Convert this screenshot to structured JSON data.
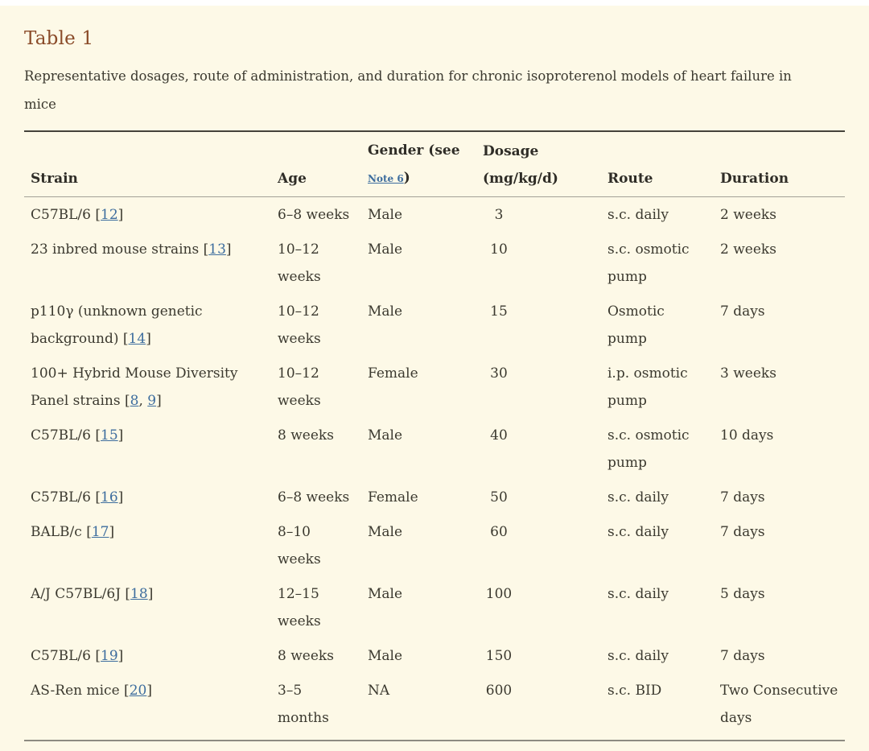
{
  "colors": {
    "background": "#fdf9e7",
    "title_accent": "#8a4b29",
    "link_blue": "#3d6d9e"
  },
  "page": {
    "title": "Table 1",
    "caption": "Representative dosages, route of administration, and duration for chronic isoproterenol models of heart failure in\nmice"
  },
  "table": {
    "headers": {
      "strain": "Strain",
      "age": "Age",
      "gender_prefix": "Gender (see",
      "gender_note_link": "Note 6",
      "gender_suffix": ")",
      "dosage": "Dosage\n(mg/kg/d)",
      "route": "Route",
      "duration": "Duration"
    },
    "rows": [
      {
        "strain_text": "C57BL/6 ",
        "refs": [
          "12"
        ],
        "age": "6–8 weeks",
        "gender": "Male",
        "dosage": "3",
        "route": "s.c. daily",
        "duration": "2 weeks"
      },
      {
        "strain_text": "23 inbred mouse strains ",
        "refs": [
          "13"
        ],
        "age": "10–12\nweeks",
        "gender": "Male",
        "dosage": "10",
        "route": "s.c. osmotic\npump",
        "duration": "2 weeks"
      },
      {
        "strain_text": "p110γ (unknown genetic\nbackground) ",
        "refs": [
          "14"
        ],
        "age": "10–12\nweeks",
        "gender": "Male",
        "dosage": "15",
        "route": "Osmotic\npump",
        "duration": "7 days"
      },
      {
        "strain_text": "100+ Hybrid Mouse Diversity\nPanel strains ",
        "refs": [
          "8",
          "9"
        ],
        "age": "10–12\nweeks",
        "gender": "Female",
        "dosage": "30",
        "route": "i.p. osmotic\npump",
        "duration": "3 weeks"
      },
      {
        "strain_text": "C57BL/6 ",
        "refs": [
          "15"
        ],
        "age": "8 weeks",
        "gender": "Male",
        "dosage": "40",
        "route": "s.c. osmotic\npump",
        "duration": "10 days"
      },
      {
        "strain_text": "C57BL/6 ",
        "refs": [
          "16"
        ],
        "age": "6–8 weeks",
        "gender": "Female",
        "dosage": "50",
        "route": "s.c. daily",
        "duration": "7 days"
      },
      {
        "strain_text": "BALB/c ",
        "refs": [
          "17"
        ],
        "age": "8–10\nweeks",
        "gender": "Male",
        "dosage": "60",
        "route": "s.c. daily",
        "duration": "7 days"
      },
      {
        "strain_text": "A/J C57BL/6J ",
        "refs": [
          "18"
        ],
        "age": "12–15\nweeks",
        "gender": "Male",
        "dosage": "100",
        "route": "s.c. daily",
        "duration": "5 days"
      },
      {
        "strain_text": "C57BL/6 ",
        "refs": [
          "19"
        ],
        "age": "8 weeks",
        "gender": "Male",
        "dosage": "150",
        "route": "s.c. daily",
        "duration": "7 days"
      },
      {
        "strain_text": "AS-Ren mice ",
        "refs": [
          "20"
        ],
        "age": "3–5\nmonths",
        "gender": "NA",
        "dosage": "600",
        "route": "s.c. BID",
        "duration": "Two Consecutive\ndays"
      }
    ]
  }
}
